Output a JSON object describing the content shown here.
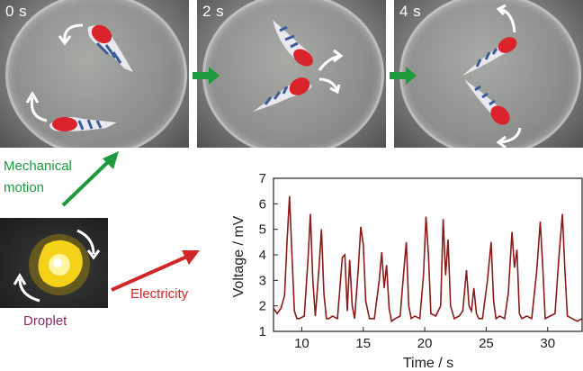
{
  "panels": [
    {
      "time": "0 s"
    },
    {
      "time": "2 s"
    },
    {
      "time": "4 s"
    }
  ],
  "labels": {
    "mechanical": "Mechanical",
    "motion": "motion",
    "droplet": "Droplet",
    "electricity": "Electricity"
  },
  "colors": {
    "green_arrow": "#1e9a3c",
    "red_arrow": "#d02828",
    "droplet_label": "#8b2a6a",
    "trace": "#8b1a1a",
    "fish_red": "#d8242a",
    "fish_blue": "#3a5a9a"
  },
  "chart_data": {
    "type": "line",
    "xlabel": "Time / s",
    "ylabel": "Voltage / mV",
    "xlim": [
      7.7,
      32.8
    ],
    "ylim": [
      1,
      7
    ],
    "xticks": [
      "10",
      "15",
      "20",
      "25",
      "30"
    ],
    "yticks": [
      "1",
      "2",
      "3",
      "4",
      "5",
      "6",
      "7"
    ],
    "series": [
      {
        "x": [
          7.7,
          8.0,
          8.3,
          8.6,
          8.8,
          9.0,
          9.2,
          9.4,
          9.6,
          9.8,
          10.2,
          10.5,
          10.7,
          10.9,
          11.1,
          11.4,
          11.6,
          11.8,
          12.0,
          12.2,
          12.5,
          12.9,
          13.3,
          13.5,
          13.7,
          13.9,
          14.1,
          14.3,
          14.6,
          14.8,
          15.0,
          15.2,
          15.5,
          15.9,
          16.3,
          16.5,
          16.7,
          16.9,
          17.1,
          17.3,
          17.6,
          18.0,
          18.3,
          18.5,
          18.7,
          18.9,
          19.2,
          19.6,
          19.9,
          20.1,
          20.3,
          20.5,
          20.9,
          21.3,
          21.5,
          21.7,
          21.9,
          22.1,
          22.4,
          22.8,
          23.1,
          23.4,
          23.6,
          23.8,
          24.0,
          24.2,
          24.4,
          24.7,
          25.1,
          25.4,
          25.6,
          25.8,
          26.1,
          26.5,
          26.8,
          27.1,
          27.3,
          27.5,
          27.7,
          27.9,
          28.3,
          28.7,
          29.1,
          29.4,
          29.6,
          29.8,
          30.2,
          30.6,
          30.9,
          31.2,
          31.4,
          31.6,
          32.0,
          32.4,
          32.8
        ],
        "y": [
          1.9,
          1.7,
          1.9,
          2.4,
          4.5,
          6.3,
          4.0,
          1.8,
          1.5,
          1.5,
          1.6,
          3.8,
          5.6,
          3.0,
          1.6,
          3.5,
          5.0,
          2.5,
          1.5,
          1.5,
          1.6,
          1.5,
          3.9,
          4.0,
          1.8,
          3.8,
          2.0,
          1.5,
          3.5,
          5.1,
          4.4,
          2.2,
          1.5,
          1.5,
          3.0,
          4.1,
          2.7,
          3.6,
          1.9,
          1.4,
          1.5,
          1.6,
          3.4,
          4.5,
          2.0,
          1.5,
          1.6,
          1.5,
          3.2,
          5.5,
          4.0,
          1.7,
          1.6,
          2.0,
          5.4,
          3.2,
          4.6,
          2.0,
          1.5,
          1.6,
          1.8,
          3.4,
          2.0,
          1.8,
          2.7,
          1.7,
          1.5,
          1.5,
          3.0,
          4.5,
          2.2,
          1.5,
          1.6,
          1.5,
          2.5,
          4.9,
          3.5,
          4.2,
          1.7,
          1.5,
          1.6,
          1.5,
          3.3,
          5.3,
          3.5,
          1.5,
          1.6,
          1.7,
          3.8,
          5.6,
          3.4,
          1.6,
          1.5,
          1.4,
          1.5
        ]
      }
    ]
  }
}
